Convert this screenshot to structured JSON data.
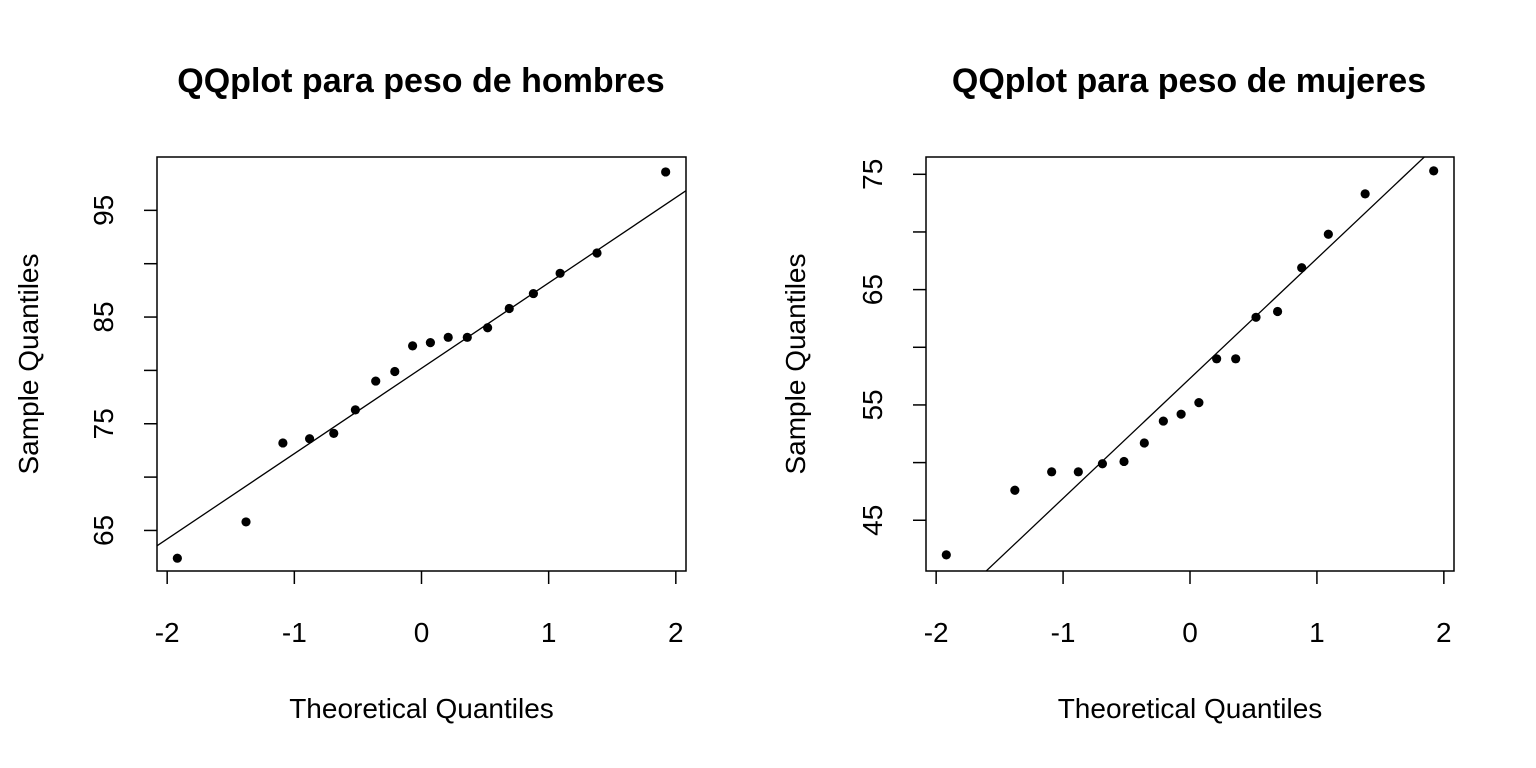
{
  "chart_data": [
    {
      "type": "scatter",
      "title": "QQplot para peso de hombres",
      "xlabel": "Theoretical Quantiles",
      "ylabel": "Sample Quantiles",
      "xlim": [
        -2.08,
        2.08
      ],
      "ylim": [
        61.2,
        100.0
      ],
      "xticks": [
        -2,
        -1,
        0,
        1,
        2
      ],
      "yticks": [
        65,
        70,
        75,
        80,
        85,
        90,
        95
      ],
      "ytick_labels": [
        65,
        75,
        85,
        95
      ],
      "grid": false,
      "marker_color": "#000000",
      "line_color": "#000000",
      "points": {
        "x": [
          -1.92,
          -1.38,
          -1.09,
          -0.88,
          -0.69,
          -0.52,
          -0.36,
          -0.21,
          -0.07,
          0.07,
          0.21,
          0.36,
          0.52,
          0.69,
          0.88,
          1.09,
          1.38,
          1.92
        ],
        "y": [
          62.4,
          65.8,
          73.2,
          73.6,
          74.1,
          76.3,
          79.0,
          79.9,
          82.3,
          82.6,
          83.1,
          83.1,
          84.0,
          85.8,
          87.2,
          89.1,
          91.0,
          98.6
        ]
      },
      "reference_line": {
        "intercept": 80.2,
        "slope": 8.0
      }
    },
    {
      "type": "scatter",
      "title": "QQplot para peso de mujeres",
      "xlabel": "Theoretical Quantiles",
      "ylabel": "Sample Quantiles",
      "xlim": [
        -2.08,
        2.08
      ],
      "ylim": [
        40.6,
        76.5
      ],
      "xticks": [
        -2,
        -1,
        0,
        1,
        2
      ],
      "yticks": [
        45,
        50,
        55,
        60,
        65,
        70,
        75
      ],
      "ytick_labels": [
        45,
        55,
        65,
        75
      ],
      "grid": false,
      "marker_color": "#000000",
      "line_color": "#000000",
      "points": {
        "x": [
          -1.92,
          -1.38,
          -1.09,
          -0.88,
          -0.69,
          -0.52,
          -0.36,
          -0.21,
          -0.07,
          0.07,
          0.21,
          0.36,
          0.52,
          0.69,
          0.88,
          1.09,
          1.38,
          1.92
        ],
        "y": [
          42.0,
          47.6,
          49.2,
          49.2,
          49.9,
          50.1,
          51.7,
          53.6,
          54.2,
          55.2,
          59.0,
          59.0,
          62.6,
          63.1,
          66.9,
          69.8,
          73.3,
          75.3
        ]
      },
      "reference_line": {
        "intercept": 57.3,
        "slope": 10.4
      }
    }
  ]
}
